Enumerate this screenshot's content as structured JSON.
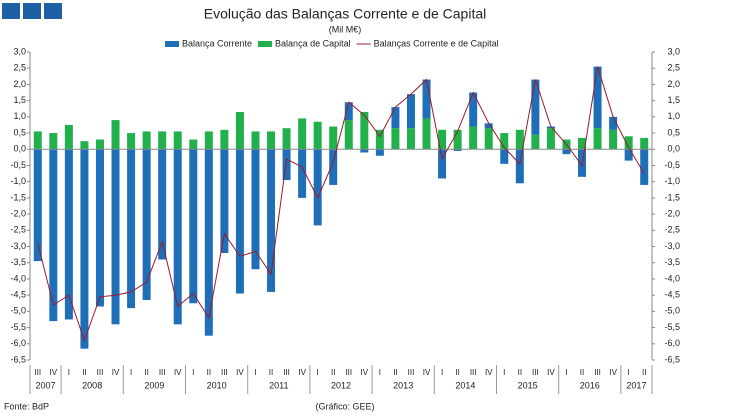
{
  "chart_data": {
    "type": "bar",
    "title": "Evolução das Balanças Corrente e de Capital",
    "subtitle": "(Mil M€)",
    "source": "Fonte: BdP",
    "credit": "(Gráfico: GEE)",
    "groups": [
      {
        "name": "2007",
        "quarters": [
          "III",
          "IV"
        ]
      },
      {
        "name": "2008",
        "quarters": [
          "I",
          "II",
          "III",
          "IV"
        ]
      },
      {
        "name": "2009",
        "quarters": [
          "I",
          "II",
          "III",
          "IV"
        ]
      },
      {
        "name": "2010",
        "quarters": [
          "I",
          "II",
          "III",
          "IV"
        ]
      },
      {
        "name": "2011",
        "quarters": [
          "I",
          "II",
          "III",
          "IV"
        ]
      },
      {
        "name": "2012",
        "quarters": [
          "I",
          "II",
          "III",
          "IV"
        ]
      },
      {
        "name": "2013",
        "quarters": [
          "I",
          "II",
          "III",
          "IV"
        ]
      },
      {
        "name": "2014",
        "quarters": [
          "I",
          "II",
          "III",
          "IV"
        ]
      },
      {
        "name": "2015",
        "quarters": [
          "I",
          "II",
          "III",
          "IV"
        ]
      },
      {
        "name": "2016",
        "quarters": [
          "I",
          "II",
          "III",
          "IV"
        ]
      },
      {
        "name": "2017",
        "quarters": [
          "I",
          "II"
        ]
      }
    ],
    "series": [
      {
        "name": "Balança Corrente",
        "color": "#1f6fb8",
        "kind": "bar",
        "values": [
          -3.45,
          -5.3,
          -5.25,
          -6.15,
          -4.85,
          -5.4,
          -4.9,
          -4.65,
          -3.4,
          -5.4,
          -4.75,
          -5.75,
          -3.2,
          -4.45,
          -3.7,
          -4.4,
          -0.95,
          -1.5,
          -2.35,
          -1.1,
          0.55,
          -0.1,
          -0.2,
          0.65,
          1.05,
          1.2,
          -0.9,
          -0.05,
          1.05,
          0.15,
          -0.45,
          -1.05,
          1.7,
          0.05,
          -0.15,
          -0.85,
          1.9,
          0.4,
          -0.35,
          -1.1
        ]
      },
      {
        "name": "Balança de Capital",
        "color": "#21b04b",
        "kind": "bar",
        "values": [
          0.55,
          0.5,
          0.75,
          0.25,
          0.3,
          0.9,
          0.5,
          0.55,
          0.55,
          0.55,
          0.3,
          0.55,
          0.6,
          1.15,
          0.55,
          0.55,
          0.65,
          0.95,
          0.85,
          0.7,
          0.9,
          1.15,
          0.6,
          0.65,
          0.65,
          0.95,
          0.6,
          0.6,
          0.7,
          0.65,
          0.5,
          0.6,
          0.45,
          0.65,
          0.3,
          0.35,
          0.65,
          0.6,
          0.4,
          0.35
        ]
      },
      {
        "name": "Balanças Corrente e de Capital",
        "color": "#a01828",
        "kind": "line",
        "values": [
          -2.9,
          -4.8,
          -4.5,
          -5.9,
          -4.55,
          -4.5,
          -4.4,
          -4.1,
          -2.85,
          -4.85,
          -4.45,
          -5.2,
          -2.6,
          -3.3,
          -3.15,
          -3.85,
          -0.3,
          -0.55,
          -1.5,
          -0.4,
          1.45,
          1.05,
          0.4,
          1.3,
          1.7,
          2.15,
          -0.3,
          0.55,
          1.75,
          0.8,
          0.05,
          -0.45,
          2.15,
          0.7,
          0.15,
          -0.5,
          2.55,
          1.0,
          0.05,
          -0.75
        ]
      }
    ],
    "ylim": [
      -6.5,
      3.0
    ],
    "yticks": [
      {
        "value": 3.0,
        "label": "3,0"
      },
      {
        "value": 2.5,
        "label": "2,5"
      },
      {
        "value": 2.0,
        "label": "2,0"
      },
      {
        "value": 1.5,
        "label": "1,5"
      },
      {
        "value": 1.0,
        "label": "1,0"
      },
      {
        "value": 0.5,
        "label": "0,5"
      },
      {
        "value": 0.0,
        "label": "0,0"
      },
      {
        "value": -0.5,
        "label": "-0,5"
      },
      {
        "value": -1.0,
        "label": "-1,0"
      },
      {
        "value": -1.5,
        "label": "-1,5"
      },
      {
        "value": -2.0,
        "label": "-2,0"
      },
      {
        "value": -2.5,
        "label": "-2,5"
      },
      {
        "value": -3.0,
        "label": "-3,0"
      },
      {
        "value": -3.5,
        "label": "-3,5"
      },
      {
        "value": -4.0,
        "label": "-4,0"
      },
      {
        "value": -4.5,
        "label": "-4,5"
      },
      {
        "value": -5.0,
        "label": "-5,0"
      },
      {
        "value": -5.5,
        "label": "-5,5"
      },
      {
        "value": -6.0,
        "label": "-6,0"
      },
      {
        "value": -6.5,
        "label": "-6,5"
      }
    ],
    "grid": false,
    "legend": "top"
  }
}
